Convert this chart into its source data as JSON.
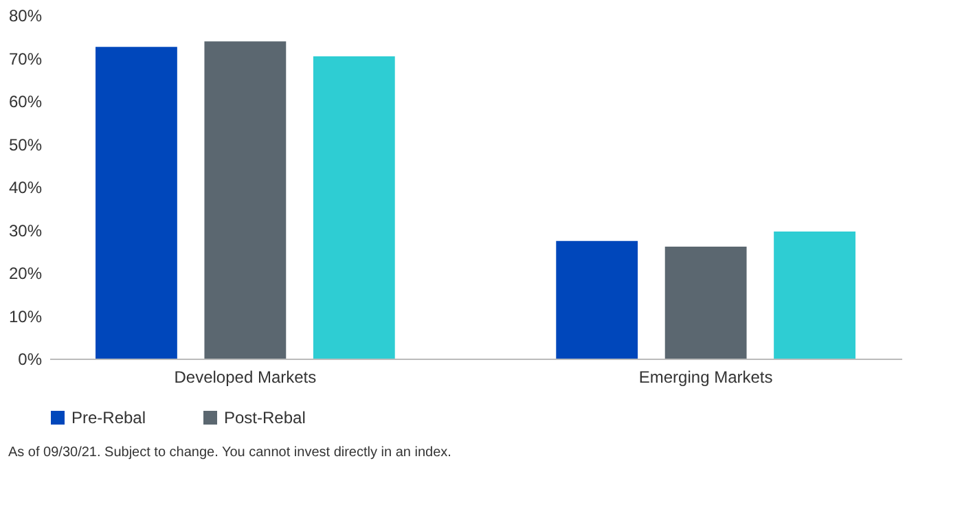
{
  "chart_data": {
    "type": "bar",
    "categories": [
      "Developed Markets",
      "Emerging Markets"
    ],
    "series": [
      {
        "name": "Pre-Rebal",
        "color": "#0047bb",
        "values": [
          72.6,
          27.4
        ]
      },
      {
        "name": "Post-Rebal",
        "color": "#5b6770",
        "values": [
          73.9,
          26.1
        ]
      },
      {
        "color": "#2ecdd3",
        "values": [
          70.4,
          29.6
        ]
      }
    ],
    "ylim": [
      0,
      80
    ],
    "yticks": [
      {
        "value": 0,
        "label": "0%"
      },
      {
        "value": 10,
        "label": "10%"
      },
      {
        "value": 20,
        "label": "20%"
      },
      {
        "value": 30,
        "label": "30%"
      },
      {
        "value": 40,
        "label": "40%"
      },
      {
        "value": 50,
        "label": "50%"
      },
      {
        "value": 60,
        "label": "60%"
      },
      {
        "value": 70,
        "label": "70%"
      },
      {
        "value": 80,
        "label": "80%"
      }
    ],
    "grid": false,
    "legend": "bottom",
    "annotations": [
      "As of 09/30/21. Subject to change. You cannot invest directly in an index."
    ]
  }
}
